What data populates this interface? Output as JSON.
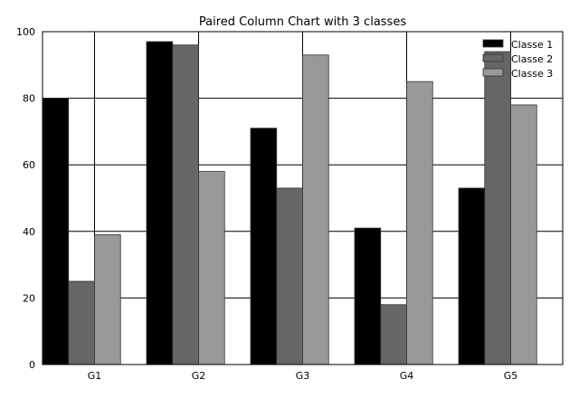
{
  "chart_data": {
    "type": "bar",
    "title": "Paired Column Chart with 3 classes",
    "xlabel": "",
    "ylabel": "",
    "categories": [
      "G1",
      "G2",
      "G3",
      "G4",
      "G5"
    ],
    "series": [
      {
        "name": "Classe 1",
        "color": "#000000",
        "values": [
          80,
          97,
          71,
          41,
          53
        ]
      },
      {
        "name": "Classe 2",
        "color": "#666666",
        "values": [
          25,
          96,
          53,
          18,
          94
        ]
      },
      {
        "name": "Classe 3",
        "color": "#999999",
        "values": [
          39,
          58,
          93,
          85,
          78
        ]
      }
    ],
    "ylim": [
      0,
      100
    ],
    "yticks": [
      "0",
      "20",
      "40",
      "60",
      "80",
      "100"
    ],
    "grid": true,
    "legend_position": "top-right"
  }
}
